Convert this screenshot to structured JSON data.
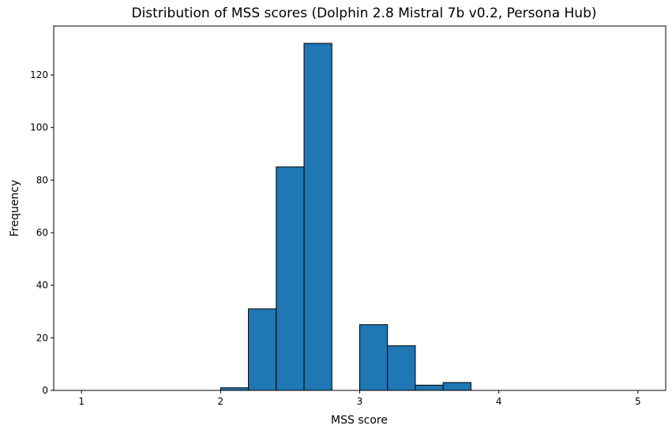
{
  "chart_data": {
    "type": "bar",
    "title": "Distribution of MSS scores (Dolphin 2.8 Mistral 7b v0.2, Persona Hub)",
    "xlabel": "MSS score",
    "ylabel": "Frequency",
    "xlim": [
      0.8,
      5.2
    ],
    "ylim": [
      0,
      138.6
    ],
    "xticks": [
      1,
      2,
      3,
      4,
      5
    ],
    "yticks": [
      0,
      20,
      40,
      60,
      80,
      100,
      120
    ],
    "grid": false,
    "bin_edges": [
      1.0,
      1.2,
      1.4,
      1.6,
      1.8,
      2.0,
      2.2,
      2.4,
      2.6,
      2.8,
      3.0,
      3.2,
      3.4,
      3.6,
      3.8,
      4.0,
      4.2,
      4.4,
      4.6,
      4.8,
      5.0
    ],
    "values": [
      0,
      0,
      0,
      0,
      0,
      1,
      31,
      85,
      132,
      0,
      25,
      17,
      2,
      3,
      0,
      0,
      0,
      0,
      0,
      0
    ],
    "bar_color": "#1f77b4",
    "edge_color": "#000000"
  }
}
